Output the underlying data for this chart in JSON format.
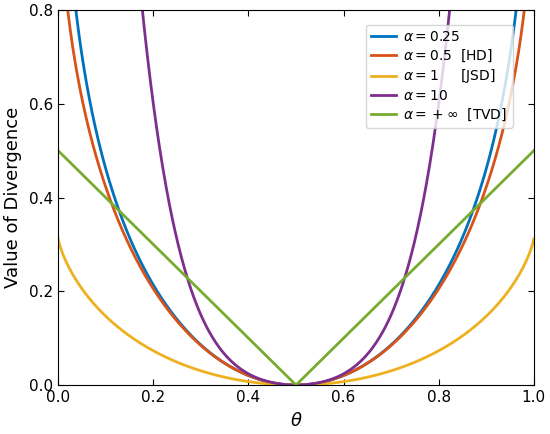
{
  "title": "",
  "xlabel": "$\\theta$",
  "ylabel": "Value of Divergence",
  "xlim": [
    0,
    1
  ],
  "ylim": [
    0,
    0.8
  ],
  "yticks": [
    0,
    0.2,
    0.4,
    0.6,
    0.8
  ],
  "xticks": [
    0,
    0.2,
    0.4,
    0.6,
    0.8,
    1.0
  ],
  "alphas": [
    0.25,
    0.5,
    1.0,
    10.0,
    10000000000.0
  ],
  "colors": [
    "#0072BD",
    "#D95319",
    "#EDB120",
    "#7E2F8E",
    "#77AC30"
  ],
  "labels": [
    "$\\alpha = 0.25$",
    "$\\alpha = 0.5$  [HD]",
    "$\\alpha = 1$     [JSD]",
    "$\\alpha = 10$",
    "$\\alpha = +\\infty$  [TVD]"
  ],
  "linewidth": 2.0,
  "n_points": 2000
}
